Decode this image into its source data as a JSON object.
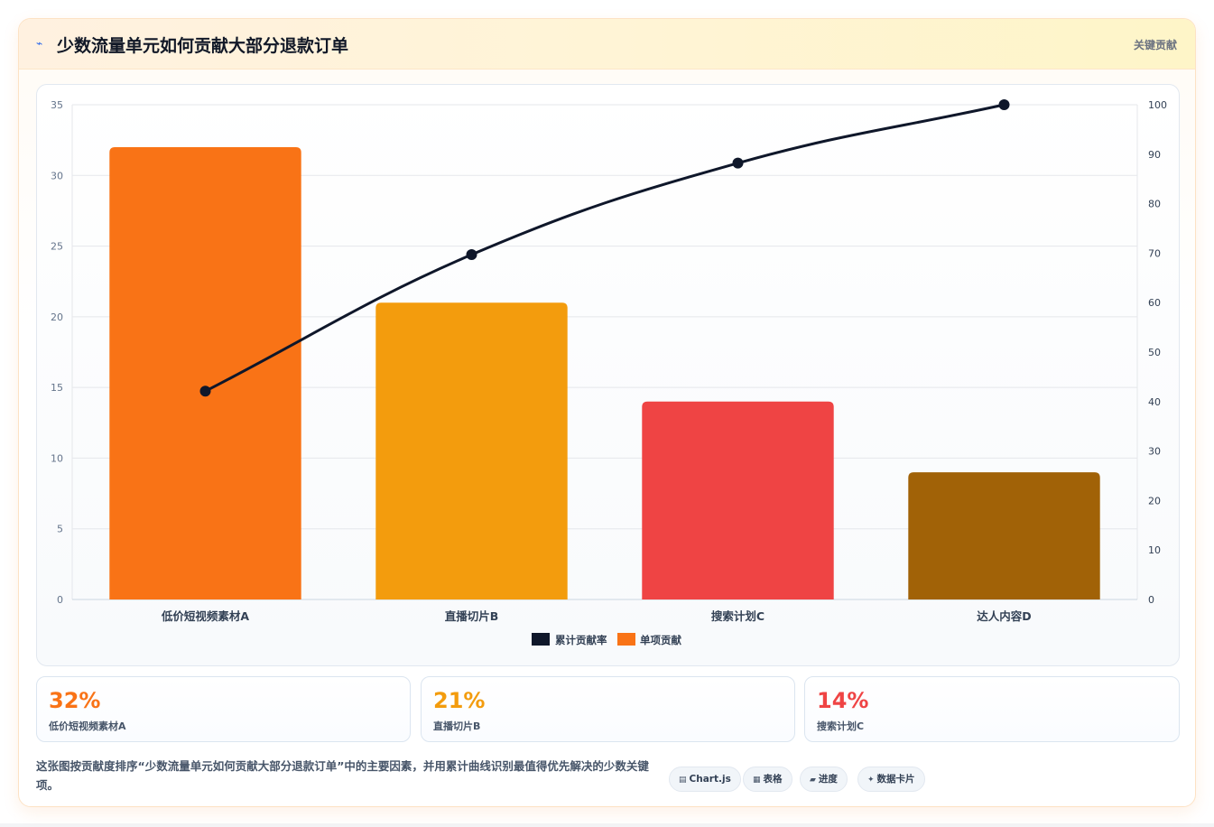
{
  "header": {
    "icon": "lightning-icon",
    "title": "少数流量单元如何贡献大部分退款订单",
    "tag": "关键贡献"
  },
  "chart_data": {
    "type": "bar",
    "categories": [
      "低价短视频素材A",
      "直播切片B",
      "搜索计划C",
      "达人内容D"
    ],
    "series": [
      {
        "name": "单项贡献",
        "type": "bar",
        "values": [
          32,
          21,
          14,
          9
        ],
        "colors": [
          "#f97316",
          "#f39c0d",
          "#ef4444",
          "#a16207"
        ]
      },
      {
        "name": "累计贡献率",
        "type": "line",
        "axis": "right",
        "values": [
          42.1,
          69.7,
          88.2,
          100
        ],
        "color": "#0f172a"
      }
    ],
    "ylim": [
      0,
      35
    ],
    "yticks": [
      0,
      5,
      10,
      15,
      20,
      25,
      30,
      35
    ],
    "y2lim": [
      0,
      100
    ],
    "y2ticks": [
      0,
      10,
      20,
      30,
      40,
      50,
      60,
      70,
      80,
      90,
      100
    ],
    "legend": [
      "累计贡献率",
      "单项贡献"
    ],
    "legend_position": "bottom",
    "grid": true
  },
  "stats": [
    {
      "value": "32%",
      "label": "低价短视频素材A",
      "color": "#f97316"
    },
    {
      "value": "21%",
      "label": "直播切片B",
      "color": "#f39c0d"
    },
    {
      "value": "14%",
      "label": "搜索计划C",
      "color": "#ef4444"
    }
  ],
  "footer": {
    "description": "这张图按贡献度排序“少数流量单元如何贡献大部分退款订单”中的主要因素，并用累计曲线识别最值得优先解决的少数关键项。",
    "pills": [
      {
        "icon": "chart-icon",
        "label": "Chart.js"
      },
      {
        "icon": "table-icon",
        "label": "表格"
      },
      {
        "icon": "progress-icon",
        "label": "进度"
      },
      {
        "icon": "sparkle-icon",
        "label": "数据卡片"
      }
    ]
  }
}
